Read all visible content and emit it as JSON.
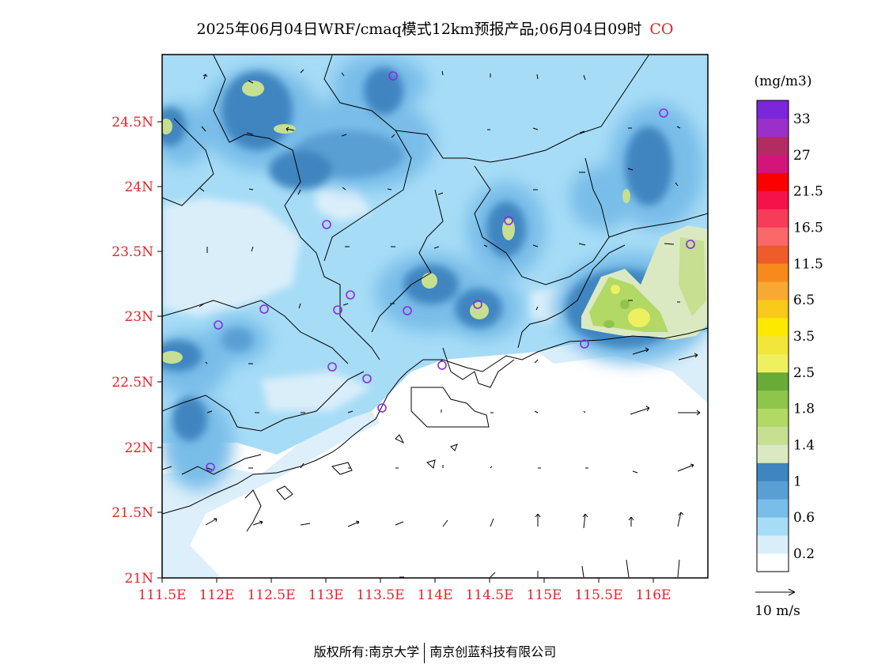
{
  "title": {
    "text": "2025年06月04日WRF/cmaq模式12km预报产品;06月04日09时",
    "species": "CO"
  },
  "map": {
    "lat_labels": [
      "24.5N",
      "24N",
      "23.5N",
      "23N",
      "22.5N",
      "22N",
      "21.5N",
      "21N"
    ],
    "lon_labels": [
      "111.5E",
      "112E",
      "112.5E",
      "113E",
      "113.5E",
      "114E",
      "114.5E",
      "115E",
      "115.5E",
      "116E"
    ],
    "lon_range": [
      111.5,
      116.5
    ],
    "lat_range": [
      21.0,
      24.95
    ]
  },
  "colorbar": {
    "unit": "(mg/m3)",
    "colors": [
      "#ffffff",
      "#daeefa",
      "#a6dcf6",
      "#79bde9",
      "#5a9fd4",
      "#3f85c0",
      "#dbe9c2",
      "#c6df90",
      "#b2d866",
      "#8fc54a",
      "#6aab37",
      "#eef060",
      "#f2e63a",
      "#fde800",
      "#f9c91a",
      "#f8a934",
      "#f88a1c",
      "#ef5c2c",
      "#fb686a",
      "#f73c5a",
      "#f5124a",
      "#fb0000",
      "#d4147a",
      "#b02c63",
      "#9b2fc9",
      "#7b26da"
    ],
    "labels": [
      "0.2",
      "0.6",
      "1",
      "1.4",
      "1.8",
      "2.5",
      "3.5",
      "6.5",
      "11.5",
      "16.5",
      "21.5",
      "27",
      "33"
    ]
  },
  "wind_legend": {
    "label": "10 m/s"
  },
  "credit": {
    "left": "版权所有:南京大学",
    "right": "南京创蓝科技有限公司"
  }
}
